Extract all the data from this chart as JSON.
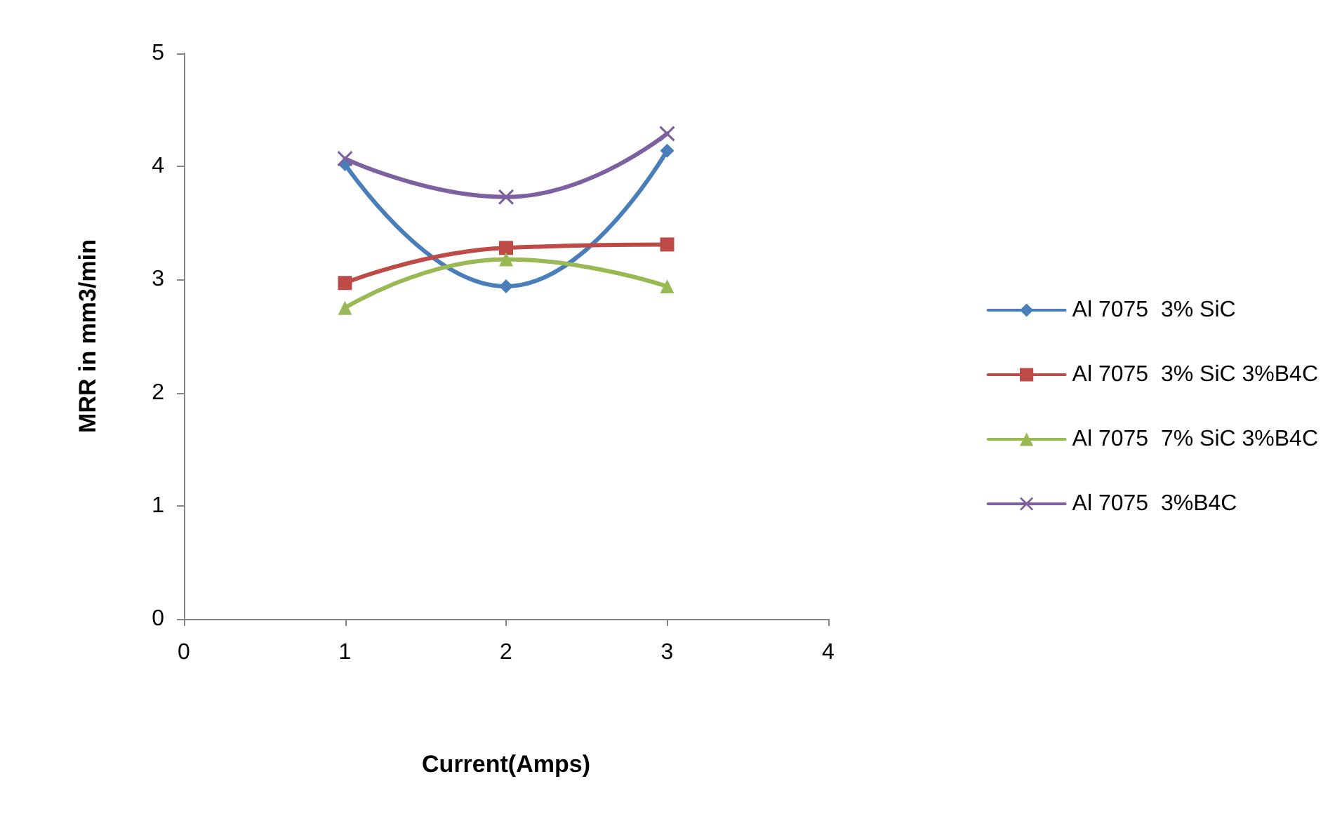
{
  "chart_data": {
    "type": "line",
    "xlabel": "Current(Amps)",
    "ylabel": "MRR in mm3/min",
    "xlim": [
      0,
      4
    ],
    "xticks": [
      0,
      1,
      2,
      3,
      4
    ],
    "ylim": [
      0,
      5
    ],
    "yticks": [
      0,
      1,
      2,
      3,
      4,
      5
    ],
    "grid": false,
    "legend": "right",
    "series": [
      {
        "name": "Al 7075  3% SiC",
        "color": "#4a7ebb",
        "marker": "diamond",
        "x": [
          1,
          2,
          3
        ],
        "values": [
          4.02,
          2.94,
          4.14
        ]
      },
      {
        "name": "Al 7075  3% SiC 3%B4C",
        "color": "#be4b48",
        "marker": "square",
        "x": [
          1,
          2,
          3
        ],
        "values": [
          2.97,
          3.28,
          3.31
        ]
      },
      {
        "name": "Al 7075  7% SiC 3%B4C",
        "color": "#98b954",
        "marker": "triangle",
        "x": [
          1,
          2,
          3
        ],
        "values": [
          2.75,
          3.18,
          2.94
        ]
      },
      {
        "name": "Al 7075  3%B4C",
        "color": "#7d60a0",
        "marker": "cross",
        "x": [
          1,
          2,
          3
        ],
        "values": [
          4.07,
          3.73,
          4.29
        ]
      }
    ]
  }
}
